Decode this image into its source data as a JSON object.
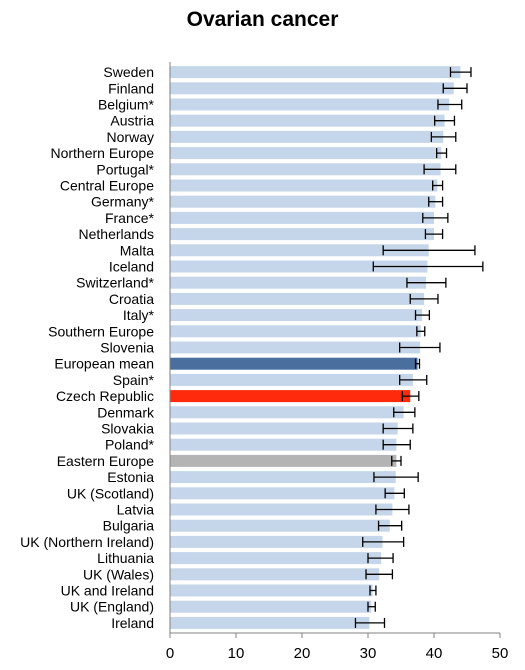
{
  "chart_data": {
    "type": "bar",
    "orientation": "horizontal",
    "title": "Ovarian cancer",
    "xlabel": "",
    "ylabel": "",
    "xlim": [
      0,
      50
    ],
    "xticks": [
      0,
      10,
      20,
      30,
      40,
      50
    ],
    "grid": false,
    "error_bars": true,
    "colors": {
      "default": "#c5d6ea",
      "european_mean": "#4a6e9e",
      "czech_republic": "#ff2a0c",
      "eastern_europe": "#b4b4b4",
      "error_bar": "#000000",
      "axis": "#808080"
    },
    "categories": [
      "Sweden",
      "Finland",
      "Belgium*",
      "Austria",
      "Norway",
      "Northern Europe",
      "Portugal*",
      "Central Europe",
      "Germany*",
      "France*",
      "Netherlands",
      "Malta",
      "Iceland",
      "Switzerland*",
      "Croatia",
      "Italy*",
      "Southern Europe",
      "Slovenia",
      "European mean",
      "Spain*",
      "Czech Republic",
      "Denmark",
      "Slovakia",
      "Poland*",
      "Eastern Europe",
      "Estonia",
      "UK (Scotland)",
      "Latvia",
      "Bulgaria",
      "UK (Northern Ireland)",
      "Lithuania",
      "UK (Wales)",
      "UK and Ireland",
      "UK (England)",
      "Ireland"
    ],
    "values": [
      44.0,
      43.0,
      42.3,
      41.6,
      41.4,
      41.1,
      41.0,
      40.5,
      40.2,
      40.0,
      40.0,
      39.2,
      39.0,
      38.8,
      38.5,
      38.2,
      38.0,
      37.9,
      37.5,
      36.8,
      36.4,
      35.4,
      34.5,
      34.3,
      34.3,
      34.2,
      34.0,
      33.7,
      33.3,
      32.2,
      32.0,
      31.7,
      30.7,
      30.5,
      30.2
    ],
    "lower": [
      42.5,
      41.4,
      40.6,
      40.1,
      39.6,
      40.4,
      38.5,
      39.8,
      39.2,
      38.3,
      38.7,
      32.3,
      30.8,
      35.9,
      36.4,
      37.2,
      37.4,
      34.8,
      37.2,
      34.8,
      35.2,
      33.9,
      32.3,
      32.3,
      33.6,
      30.9,
      32.6,
      31.2,
      31.6,
      29.2,
      30.0,
      29.7,
      30.3,
      30.0,
      28.1
    ],
    "upper": [
      45.6,
      45.0,
      44.2,
      43.1,
      43.3,
      41.9,
      43.3,
      41.3,
      41.3,
      42.1,
      41.3,
      46.2,
      47.4,
      41.8,
      40.6,
      39.3,
      38.6,
      40.9,
      37.8,
      38.9,
      37.7,
      37.1,
      36.8,
      36.4,
      35.0,
      37.6,
      35.5,
      36.2,
      35.1,
      35.4,
      33.8,
      33.7,
      31.2,
      31.1,
      32.5
    ],
    "highlight": {
      "18": "european_mean",
      "20": "czech_republic",
      "24": "eastern_europe"
    }
  }
}
